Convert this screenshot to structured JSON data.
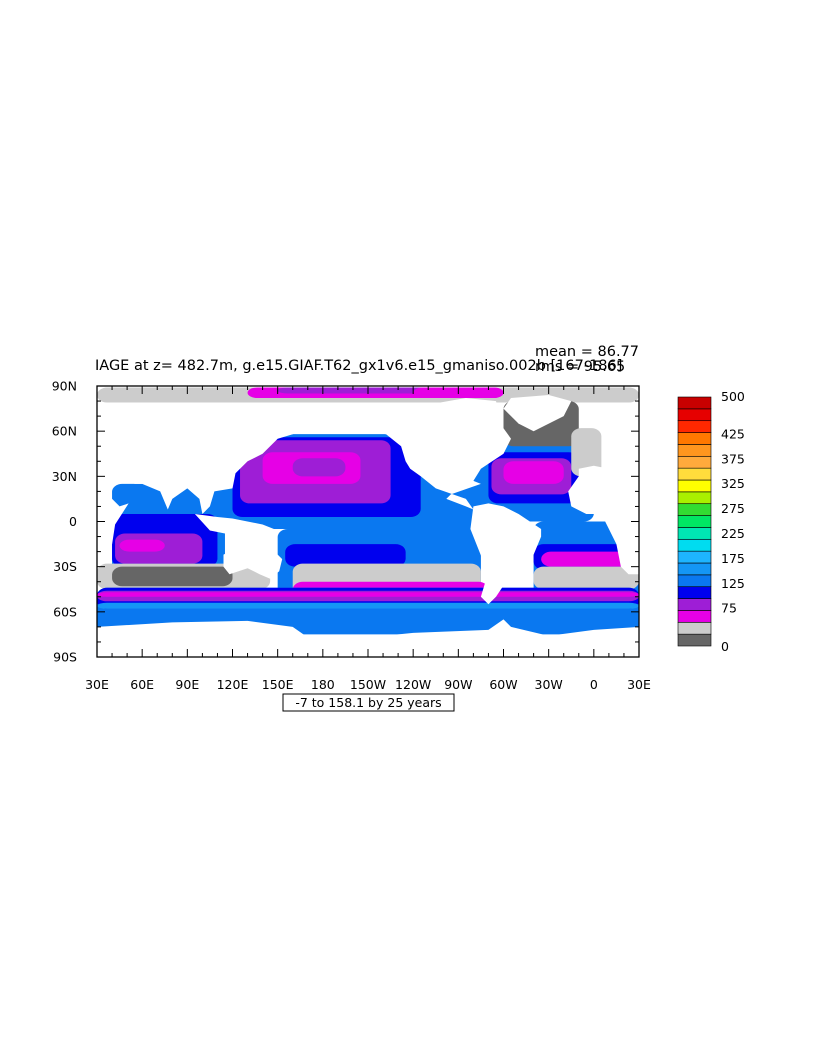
{
  "chart_data": {
    "type": "heatmap",
    "title": "IAGE at z= 482.7m, g.e15.GIAF.T62_gx1v6.e15_gmaniso.002b [167-186]",
    "stats": [
      "mean = 86.77",
      "rms = 95.65"
    ],
    "subtitle": "-7 to 158.1 by 25 years",
    "x_tick_labels": [
      "30E",
      "60E",
      "90E",
      "120E",
      "150E",
      "180",
      "150W",
      "120W",
      "90W",
      "60W",
      "30W",
      "0",
      "30E"
    ],
    "x_ticks_deg": [
      30,
      60,
      90,
      120,
      150,
      180,
      210,
      240,
      270,
      300,
      330,
      360,
      390
    ],
    "xlim": [
      30,
      390
    ],
    "y_tick_labels": [
      "90N",
      "60N",
      "30N",
      "0",
      "30S",
      "60S",
      "90S"
    ],
    "y_ticks_deg": [
      90,
      60,
      30,
      0,
      -30,
      -60,
      -90
    ],
    "ylim": [
      -90,
      90
    ],
    "colorbar": {
      "labels": [
        "500",
        "425",
        "375",
        "325",
        "275",
        "225",
        "175",
        "125",
        "75",
        "0"
      ],
      "label_values": [
        500,
        425,
        375,
        325,
        275,
        225,
        175,
        125,
        75,
        0
      ],
      "colors": [
        "#666666",
        "#cccccc",
        "#e600e6",
        "#9e1ed6",
        "#0000ee",
        "#0a78f0",
        "#1496f5",
        "#1eb4ff",
        "#00dcf0",
        "#00e6b4",
        "#00e664",
        "#32dc32",
        "#aaf000",
        "#ffff00",
        "#ffdc3c",
        "#ffaa3c",
        "#ff961e",
        "#ff7800",
        "#ff2800",
        "#e60000",
        "#c80000"
      ]
    },
    "regions": [
      {
        "name": "arctic",
        "bands": [
          {
            "lat": [
              79,
              89
            ],
            "lon": [
              30,
              390
            ],
            "lvl": 1
          },
          {
            "lat": [
              82,
              89
            ],
            "lon": [
              130,
              300
            ],
            "lvl": 2
          },
          {
            "lat": [
              85,
              89
            ],
            "lon": [
              150,
              250
            ],
            "lvl": 3
          },
          {
            "lat": [
              82,
              89
            ],
            "lon": [
              240,
              300
            ],
            "lvl": 2
          }
        ]
      },
      {
        "name": "north-pacific",
        "bands": [
          {
            "lat": [
              -5,
              58
            ],
            "lon": [
              110,
              285
            ],
            "lvl": 5
          },
          {
            "lat": [
              3,
              56
            ],
            "lon": [
              120,
              245
            ],
            "lvl": 4
          },
          {
            "lat": [
              12,
              54
            ],
            "lon": [
              125,
              225
            ],
            "lvl": 3
          },
          {
            "lat": [
              25,
              46
            ],
            "lon": [
              140,
              205
            ],
            "lvl": 2
          },
          {
            "lat": [
              30,
              42
            ],
            "lon": [
              160,
              195
            ],
            "lvl": 3
          }
        ]
      },
      {
        "name": "indian-ocean",
        "bands": [
          {
            "lat": [
              -35,
              25
            ],
            "lon": [
              40,
              115
            ],
            "lvl": 5
          },
          {
            "lat": [
              -30,
              5
            ],
            "lon": [
              40,
              110
            ],
            "lvl": 4
          },
          {
            "lat": [
              -28,
              -8
            ],
            "lon": [
              42,
              100
            ],
            "lvl": 3
          },
          {
            "lat": [
              -20,
              -12
            ],
            "lon": [
              45,
              75
            ],
            "lvl": 2
          },
          {
            "lat": [
              -45,
              -28
            ],
            "lon": [
              30,
              145
            ],
            "lvl": 1
          },
          {
            "lat": [
              -43,
              -30
            ],
            "lon": [
              40,
              120
            ],
            "lvl": 0
          }
        ]
      },
      {
        "name": "south-pacific",
        "bands": [
          {
            "lat": [
              -52,
              -5
            ],
            "lon": [
              150,
              285
            ],
            "lvl": 5
          },
          {
            "lat": [
              -30,
              -15
            ],
            "lon": [
              155,
              235
            ],
            "lvl": 4
          },
          {
            "lat": [
              -50,
              -28
            ],
            "lon": [
              160,
              285
            ],
            "lvl": 1
          },
          {
            "lat": [
              -52,
              -40
            ],
            "lon": [
              160,
              290
            ],
            "lvl": 2
          }
        ]
      },
      {
        "name": "north-atlantic",
        "bands": [
          {
            "lat": [
              0,
              60
            ],
            "lon": [
              280,
              360
            ],
            "lvl": 5
          },
          {
            "lat": [
              12,
              46
            ],
            "lon": [
              290,
              350
            ],
            "lvl": 4
          },
          {
            "lat": [
              18,
              42
            ],
            "lon": [
              292,
              345
            ],
            "lvl": 3
          },
          {
            "lat": [
              25,
              40
            ],
            "lon": [
              300,
              340
            ],
            "lvl": 2
          },
          {
            "lat": [
              50,
              80
            ],
            "lon": [
              300,
              350
            ],
            "lvl": 0
          },
          {
            "lat": [
              30,
              62
            ],
            "lon": [
              345,
              365
            ],
            "lvl": 1
          }
        ]
      },
      {
        "name": "south-atlantic",
        "bands": [
          {
            "lat": [
              -55,
              0
            ],
            "lon": [
              320,
              390
            ],
            "lvl": 5
          },
          {
            "lat": [
              -32,
              -15
            ],
            "lon": [
              320,
              380
            ],
            "lvl": 4
          },
          {
            "lat": [
              -30,
              -20
            ],
            "lon": [
              325,
              385
            ],
            "lvl": 2
          },
          {
            "lat": [
              -45,
              -30
            ],
            "lon": [
              320,
              390
            ],
            "lvl": 1
          },
          {
            "lat": [
              -70,
              -55
            ],
            "lon": [
              340,
              390
            ],
            "lvl": 6
          }
        ]
      },
      {
        "name": "southern-ocean",
        "bands": [
          {
            "lat": [
              -75,
              -44
            ],
            "lon": [
              30,
              390
            ],
            "lvl": 5
          },
          {
            "lat": [
              -58,
              -44
            ],
            "lon": [
              30,
              390
            ],
            "lvl": 4
          },
          {
            "lat": [
              -53,
              -46
            ],
            "lon": [
              30,
              390
            ],
            "lvl": 3
          },
          {
            "lat": [
              -50,
              -47
            ],
            "lon": [
              30,
              390
            ],
            "lvl": 2
          },
          {
            "lat": [
              -58,
              -54
            ],
            "lon": [
              30,
              390
            ],
            "lvl": 6
          }
        ]
      }
    ],
    "land": [
      {
        "name": "north-america",
        "poly": [
          [
            190,
            70
          ],
          [
            200,
            72
          ],
          [
            235,
            75
          ],
          [
            275,
            82
          ],
          [
            295,
            80
          ],
          [
            300,
            62
          ],
          [
            305,
            55
          ],
          [
            300,
            45
          ],
          [
            285,
            35
          ],
          [
            280,
            27
          ],
          [
            285,
            25
          ],
          [
            265,
            18
          ],
          [
            262,
            15
          ],
          [
            275,
            10
          ],
          [
            280,
            8
          ],
          [
            275,
            15
          ],
          [
            255,
            22
          ],
          [
            245,
            30
          ],
          [
            238,
            35
          ],
          [
            235,
            40
          ],
          [
            232,
            50
          ],
          [
            222,
            58
          ],
          [
            210,
            60
          ],
          [
            195,
            63
          ]
        ]
      },
      {
        "name": "greenland",
        "poly": [
          [
            305,
            82
          ],
          [
            330,
            84
          ],
          [
            345,
            80
          ],
          [
            340,
            70
          ],
          [
            320,
            60
          ],
          [
            310,
            65
          ],
          [
            300,
            75
          ]
        ]
      },
      {
        "name": "south-america",
        "poly": [
          [
            280,
            10
          ],
          [
            290,
            12
          ],
          [
            300,
            10
          ],
          [
            310,
            5
          ],
          [
            325,
            -5
          ],
          [
            325,
            -10
          ],
          [
            320,
            -22
          ],
          [
            312,
            -28
          ],
          [
            303,
            -38
          ],
          [
            295,
            -50
          ],
          [
            290,
            -55
          ],
          [
            285,
            -50
          ],
          [
            288,
            -40
          ],
          [
            288,
            -30
          ],
          [
            282,
            -15
          ],
          [
            278,
            -5
          ]
        ]
      },
      {
        "name": "eurasia",
        "poly": [
          [
            360,
            30
          ],
          [
            365,
            36
          ],
          [
            370,
            45
          ],
          [
            372,
            55
          ],
          [
            380,
            60
          ],
          [
            385,
            70
          ],
          [
            390,
            75
          ],
          [
            390,
            30
          ]
        ]
      },
      {
        "name": "asia",
        "poly": [
          [
            30,
            40
          ],
          [
            30,
            75
          ],
          [
            60,
            77
          ],
          [
            100,
            78
          ],
          [
            140,
            72
          ],
          [
            170,
            68
          ],
          [
            180,
            66
          ],
          [
            170,
            62
          ],
          [
            160,
            58
          ],
          [
            150,
            55
          ],
          [
            140,
            45
          ],
          [
            130,
            40
          ],
          [
            122,
            32
          ],
          [
            120,
            22
          ],
          [
            108,
            20
          ],
          [
            105,
            10
          ],
          [
            100,
            5
          ],
          [
            98,
            15
          ],
          [
            90,
            22
          ],
          [
            80,
            15
          ],
          [
            77,
            8
          ],
          [
            72,
            20
          ],
          [
            60,
            25
          ],
          [
            55,
            25
          ],
          [
            50,
            30
          ],
          [
            45,
            40
          ]
        ]
      },
      {
        "name": "africa",
        "poly": [
          [
            30,
            30
          ],
          [
            33,
            28
          ],
          [
            40,
            15
          ],
          [
            45,
            10
          ],
          [
            51,
            12
          ],
          [
            42,
            -2
          ],
          [
            40,
            -15
          ],
          [
            35,
            -25
          ],
          [
            30,
            -32
          ],
          [
            30,
            30
          ]
        ]
      },
      {
        "name": "africa-east",
        "poly": [
          [
            350,
            35
          ],
          [
            360,
            37
          ],
          [
            380,
            33
          ],
          [
            390,
            30
          ],
          [
            390,
            -35
          ],
          [
            383,
            -35
          ],
          [
            378,
            -30
          ],
          [
            375,
            -15
          ],
          [
            370,
            -5
          ],
          [
            365,
            5
          ],
          [
            355,
            5
          ],
          [
            345,
            10
          ],
          [
            343,
            20
          ],
          [
            350,
            30
          ]
        ]
      },
      {
        "name": "australia",
        "poly": [
          [
            114,
            -22
          ],
          [
            122,
            -18
          ],
          [
            130,
            -12
          ],
          [
            137,
            -12
          ],
          [
            142,
            -10
          ],
          [
            146,
            -18
          ],
          [
            153,
            -25
          ],
          [
            151,
            -33
          ],
          [
            145,
            -38
          ],
          [
            138,
            -35
          ],
          [
            130,
            -31
          ],
          [
            118,
            -35
          ],
          [
            114,
            -30
          ]
        ]
      },
      {
        "name": "maritime",
        "poly": [
          [
            95,
            5
          ],
          [
            105,
            -6
          ],
          [
            115,
            -8
          ],
          [
            125,
            -8
          ],
          [
            140,
            -5
          ],
          [
            150,
            -6
          ],
          [
            140,
            -2
          ],
          [
            120,
            2
          ],
          [
            110,
            3
          ]
        ]
      },
      {
        "name": "antarctica",
        "poly": [
          [
            30,
            -70
          ],
          [
            80,
            -67
          ],
          [
            130,
            -66
          ],
          [
            160,
            -70
          ],
          [
            170,
            -77
          ],
          [
            200,
            -78
          ],
          [
            240,
            -74
          ],
          [
            290,
            -72
          ],
          [
            300,
            -65
          ],
          [
            305,
            -70
          ],
          [
            330,
            -76
          ],
          [
            360,
            -72
          ],
          [
            390,
            -70
          ],
          [
            390,
            -90
          ],
          [
            30,
            -90
          ]
        ]
      }
    ]
  }
}
